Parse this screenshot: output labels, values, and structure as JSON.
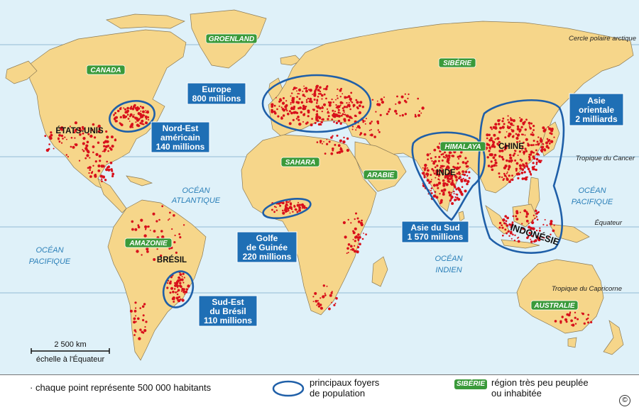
{
  "lines": {
    "arctic": "Cercle polaire arctique",
    "cancer": "Tropique du Cancer",
    "equator": "Équateur",
    "capricorn": "Tropique du Capricorne"
  },
  "regions": {
    "canada": "CANADA",
    "groenland": "GROENLAND",
    "siberie": "SIBÉRIE",
    "sahara": "SAHARA",
    "arabie": "ARABIE",
    "himalaya": "HIMALAYA",
    "amazonie": "AMAZONIE",
    "australie": "AUSTRALIE"
  },
  "countries": {
    "usa": "ÉTATS-UNIS",
    "inde": "INDE",
    "chine": "CHINE",
    "indonesie": "INDONÉSIE",
    "bresil": "BRÉSIL"
  },
  "oceans": {
    "atlantique": [
      "OCÉAN",
      "ATLANTIQUE"
    ],
    "pacifique_w": [
      "OCÉAN",
      "PACIFIQUE"
    ],
    "pacifique_e": [
      "OCÉAN",
      "PACIFIQUE"
    ],
    "indien": [
      "OCÉAN",
      "INDIEN"
    ]
  },
  "hubs": {
    "europe": [
      "Europe",
      "800 millions"
    ],
    "nord_est": [
      "Nord-Est",
      "américain",
      "140 millions"
    ],
    "golfe": [
      "Golfe",
      "de Guinée",
      "220 millions"
    ],
    "asie_sud": [
      "Asie du Sud",
      "1 570 millions"
    ],
    "asie_orientale": [
      "Asie",
      "orientale",
      "2 milliards"
    ],
    "sud_est_bresil": [
      "Sud-Est",
      "du Brésil",
      "110 millions"
    ]
  },
  "scale": {
    "label": "2 500 km",
    "note": "échelle à l'Équateur"
  },
  "legend": {
    "dot": "· chaque point représente 500 000 habitants",
    "foyers": [
      "principaux foyers",
      "de population"
    ],
    "tag": "SIBÉRIE",
    "region": [
      "région très peu peuplée",
      "ou inhabitée"
    ],
    "copyright": "©"
  },
  "colors": {
    "ocean": "#dff1f9",
    "land": "#f6d68a",
    "dots": "#d8101b",
    "hub": "#1f5fa8",
    "tag": "#3a9a3a"
  }
}
